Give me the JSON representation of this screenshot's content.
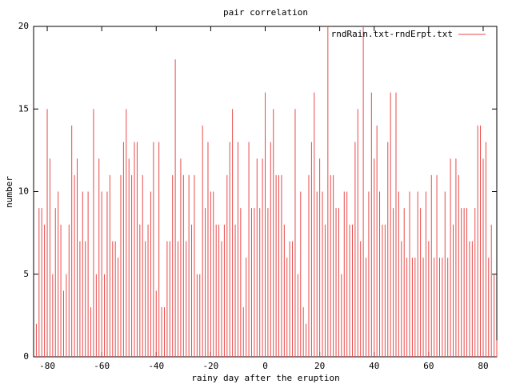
{
  "chart_data": {
    "type": "impulse",
    "title": "pair correlation",
    "x_label": "rainy day after the eruption",
    "y_label": "number",
    "x": [
      -85,
      -84,
      -83,
      -82,
      -81,
      -80,
      -79,
      -78,
      -77,
      -76,
      -75,
      -74,
      -73,
      -72,
      -71,
      -70,
      -69,
      -68,
      -67,
      -66,
      -65,
      -64,
      -63,
      -62,
      -61,
      -60,
      -59,
      -58,
      -57,
      -56,
      -55,
      -54,
      -53,
      -52,
      -51,
      -50,
      -49,
      -48,
      -47,
      -46,
      -45,
      -44,
      -43,
      -42,
      -41,
      -40,
      -39,
      -38,
      -37,
      -36,
      -35,
      -34,
      -33,
      -32,
      -31,
      -30,
      -29,
      -28,
      -27,
      -26,
      -25,
      -24,
      -23,
      -22,
      -21,
      -20,
      -19,
      -18,
      -17,
      -16,
      -15,
      -14,
      -13,
      -12,
      -11,
      -10,
      -9,
      -8,
      -7,
      -6,
      -5,
      -4,
      -3,
      -2,
      -1,
      0,
      1,
      2,
      3,
      4,
      5,
      6,
      7,
      8,
      9,
      10,
      11,
      12,
      13,
      14,
      15,
      16,
      17,
      18,
      19,
      20,
      21,
      22,
      23,
      24,
      25,
      26,
      27,
      28,
      29,
      30,
      31,
      32,
      33,
      34,
      35,
      36,
      37,
      38,
      39,
      40,
      41,
      42,
      43,
      44,
      45,
      46,
      47,
      48,
      49,
      50,
      51,
      52,
      53,
      54,
      55,
      56,
      57,
      58,
      59,
      60,
      61,
      62,
      63,
      64,
      65,
      66,
      67,
      68,
      69,
      70,
      71,
      72,
      73,
      74,
      75,
      76,
      77,
      78,
      79,
      80,
      81,
      82,
      83,
      84,
      85
    ],
    "series": [
      {
        "name": "rndRain.txt-rndErpt.txt",
        "color": "#e84a4a",
        "values": [
          0,
          2,
          9,
          9,
          8,
          15,
          12,
          5,
          9,
          10,
          8,
          4,
          5,
          8,
          14,
          11,
          12,
          7,
          10,
          7,
          10,
          3,
          15,
          5,
          12,
          10,
          5,
          10,
          11,
          7,
          7,
          6,
          11,
          13,
          15,
          12,
          11,
          13,
          13,
          8,
          11,
          7,
          8,
          10,
          13,
          4,
          13,
          3,
          3,
          7,
          7,
          11,
          18,
          7,
          12,
          11,
          7,
          11,
          8,
          11,
          5,
          5,
          14,
          9,
          13,
          10,
          10,
          8,
          8,
          7,
          8,
          11,
          13,
          15,
          8,
          13,
          9,
          3,
          6,
          13,
          9,
          9,
          12,
          9,
          12,
          16,
          9,
          13,
          15,
          11,
          11,
          11,
          8,
          6,
          7,
          7,
          15,
          5,
          10,
          3,
          2,
          11,
          13,
          16,
          10,
          12,
          10,
          8,
          20,
          11,
          11,
          9,
          9,
          5,
          10,
          10,
          8,
          8,
          13,
          15,
          7,
          20,
          6,
          10,
          16,
          12,
          14,
          10,
          8,
          8,
          13,
          16,
          9,
          16,
          10,
          7,
          9,
          6,
          10,
          6,
          6,
          10,
          9,
          6,
          10,
          7,
          11,
          6,
          11,
          6,
          6,
          10,
          6,
          12,
          8,
          12,
          11,
          9,
          9,
          9,
          7,
          7,
          9,
          14,
          14,
          12,
          13,
          6,
          8,
          5,
          1
        ]
      }
    ],
    "xlim": [
      -85,
      85
    ],
    "ylim": [
      0,
      20
    ],
    "xticks": [
      -80,
      -60,
      -40,
      -20,
      0,
      20,
      40,
      60,
      80
    ],
    "yticks": [
      0,
      5,
      10,
      15,
      20
    ],
    "legend": "top-right"
  }
}
